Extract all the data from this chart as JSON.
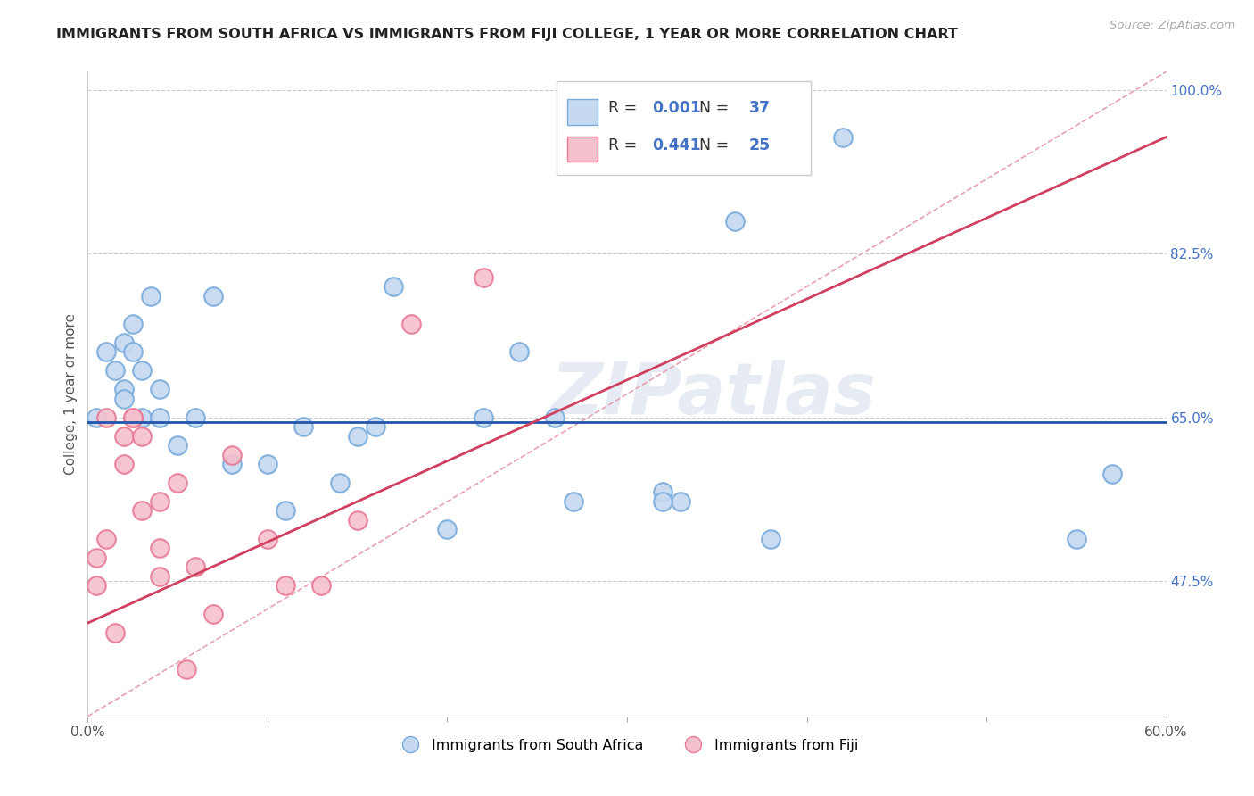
{
  "title": "IMMIGRANTS FROM SOUTH AFRICA VS IMMIGRANTS FROM FIJI COLLEGE, 1 YEAR OR MORE CORRELATION CHART",
  "source": "Source: ZipAtlas.com",
  "ylabel": "College, 1 year or more",
  "legend_label1": "Immigrants from South Africa",
  "legend_label2": "Immigrants from Fiji",
  "r1": "0.001",
  "n1": "37",
  "r2": "0.441",
  "n2": "25",
  "xlim": [
    0.0,
    0.6
  ],
  "ylim": [
    0.33,
    1.02
  ],
  "xtick_labels": [
    "0.0%",
    "",
    "",
    "",
    "",
    "",
    "60.0%"
  ],
  "xtick_vals": [
    0.0,
    0.1,
    0.2,
    0.3,
    0.4,
    0.5,
    0.6
  ],
  "ytick_vals": [
    0.475,
    0.65,
    0.825,
    1.0
  ],
  "ytick_labels_right": [
    "47.5%",
    "65.0%",
    "82.5%",
    "100.0%"
  ],
  "blue_fill": "#c5d9f0",
  "blue_edge": "#7aabdb",
  "pink_fill": "#f5c0ce",
  "pink_edge": "#e87a96",
  "blue_line_color": "#2255aa",
  "pink_line_color": "#d04060",
  "ref_line_color": "#e8a0b0",
  "watermark": "ZIPatlas",
  "blue_x": [
    0.005,
    0.01,
    0.015,
    0.02,
    0.02,
    0.02,
    0.025,
    0.025,
    0.03,
    0.03,
    0.035,
    0.04,
    0.04,
    0.05,
    0.06,
    0.07,
    0.08,
    0.1,
    0.11,
    0.12,
    0.14,
    0.15,
    0.16,
    0.17,
    0.2,
    0.22,
    0.24,
    0.26,
    0.27,
    0.32,
    0.33,
    0.36,
    0.38,
    0.42,
    0.55,
    0.57,
    0.32
  ],
  "blue_y": [
    0.65,
    0.72,
    0.7,
    0.68,
    0.73,
    0.67,
    0.75,
    0.72,
    0.65,
    0.7,
    0.78,
    0.65,
    0.68,
    0.62,
    0.65,
    0.78,
    0.6,
    0.6,
    0.55,
    0.64,
    0.58,
    0.63,
    0.64,
    0.79,
    0.53,
    0.65,
    0.72,
    0.65,
    0.56,
    0.57,
    0.56,
    0.86,
    0.52,
    0.95,
    0.52,
    0.59,
    0.56
  ],
  "pink_x": [
    0.005,
    0.005,
    0.01,
    0.01,
    0.015,
    0.02,
    0.02,
    0.025,
    0.025,
    0.03,
    0.03,
    0.04,
    0.04,
    0.04,
    0.05,
    0.06,
    0.07,
    0.08,
    0.1,
    0.11,
    0.13,
    0.15,
    0.18,
    0.22,
    0.055
  ],
  "pink_y": [
    0.47,
    0.5,
    0.52,
    0.65,
    0.42,
    0.6,
    0.63,
    0.65,
    0.65,
    0.55,
    0.63,
    0.48,
    0.51,
    0.56,
    0.58,
    0.49,
    0.44,
    0.61,
    0.52,
    0.47,
    0.47,
    0.54,
    0.75,
    0.8,
    0.38
  ],
  "blue_trend_y": 0.645,
  "pink_trend_x": [
    0.0,
    0.6
  ],
  "pink_trend_y": [
    0.43,
    0.95
  ],
  "ref_line_x": [
    0.0,
    0.6
  ],
  "ref_line_y": [
    0.33,
    1.02
  ]
}
